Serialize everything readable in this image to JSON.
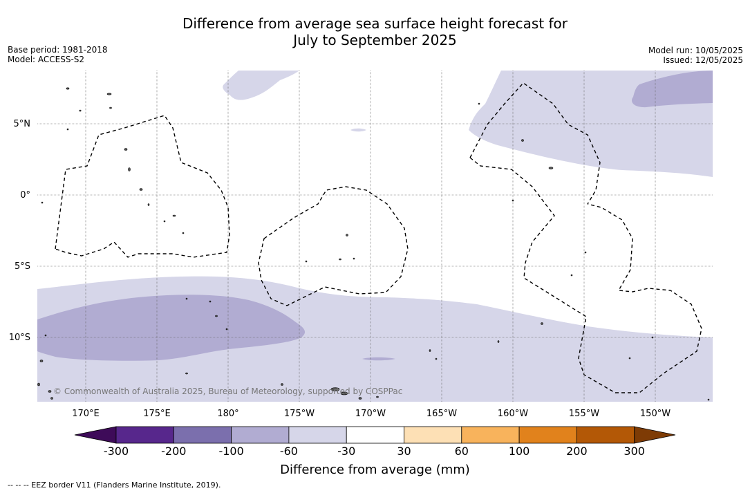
{
  "header": {
    "title_line1": "Difference from average sea surface height forecast for",
    "title_line2": "July to September 2025",
    "base_period": "Base period: 1981-2018",
    "model": "Model: ACCESS-S2",
    "model_run": "Model run: 10/05/2025",
    "issued": "Issued: 12/05/2025"
  },
  "map": {
    "lat_labels": [
      "5°N",
      "0°",
      "5°S",
      "10°S"
    ],
    "lon_labels": [
      "170°E",
      "175°E",
      "180°",
      "175°W",
      "170°W",
      "165°W",
      "160°W",
      "155°W",
      "150°W"
    ],
    "copyright": "© Commonwealth of Australia 2025, Bureau of Meteorology, supported by COSPPac",
    "colors": {
      "light_purple": "#d6d6e9",
      "mid_purple": "#b1acd2",
      "land": "#555555",
      "eez": "#000000"
    }
  },
  "colorbar": {
    "title": "Difference from average (mm)",
    "tick_labels": [
      "-300",
      "-200",
      "-100",
      "-60",
      "-30",
      "30",
      "60",
      "100",
      "200",
      "300"
    ],
    "colors": [
      "#3e0b59",
      "#57278c",
      "#7b6fad",
      "#b1acd2",
      "#d6d6e9",
      "#ffffff",
      "#fde0b5",
      "#f8b35c",
      "#e1821c",
      "#b35806",
      "#7e3b05"
    ]
  },
  "footnote": "--  --  -- EEZ border V11 (Flanders Marine Institute, 2019)."
}
